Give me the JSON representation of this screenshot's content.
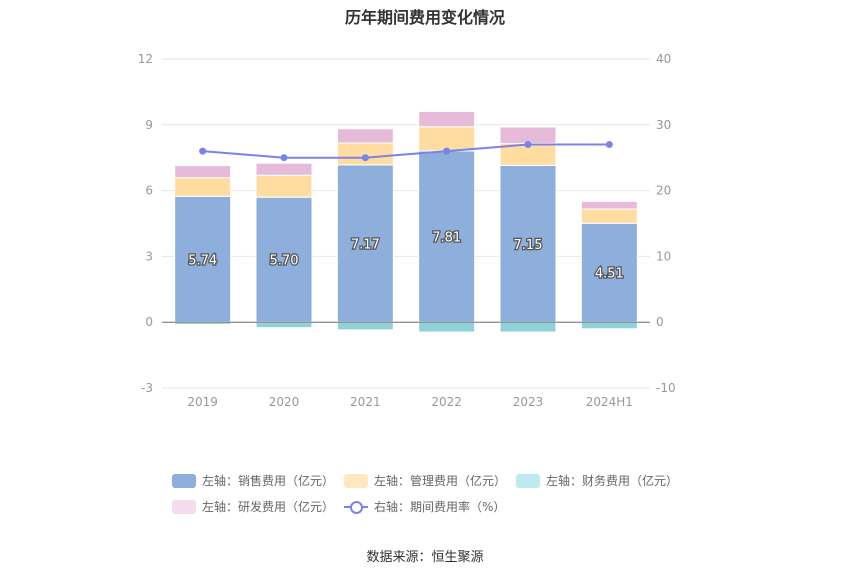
{
  "title": "历年期间费用变化情况",
  "source": "数据来源：恒生聚源",
  "colors": {
    "sales": "#8eaedb",
    "admin": "#ffdca0",
    "finance": "#8fd3d9",
    "rd": "#e6bbda",
    "rate": "#7b83e8"
  },
  "legend": [
    {
      "label": "左轴：销售费用（亿元）",
      "key": "sales",
      "kind": "bar"
    },
    {
      "label": "左轴：管理费用（亿元）",
      "key": "admin",
      "kind": "bar"
    },
    {
      "label": "左轴：财务费用（亿元）",
      "key": "finance",
      "kind": "bar"
    },
    {
      "label": "左轴：研发费用（亿元）",
      "key": "rd",
      "kind": "bar"
    },
    {
      "label": "右轴：期间费用率（%）",
      "key": "rate",
      "kind": "line"
    }
  ],
  "chart_data": {
    "type": "bar",
    "stacked": true,
    "categories": [
      "2019",
      "2020",
      "2021",
      "2022",
      "2023",
      "2024H1"
    ],
    "left_axis": {
      "ylim": [
        -3,
        12
      ],
      "ticks": [
        -3,
        0,
        3,
        6,
        9,
        12
      ]
    },
    "right_axis": {
      "ylim": [
        -10,
        40
      ],
      "ticks": [
        -10,
        0,
        10,
        20,
        30,
        40
      ]
    },
    "grid": true,
    "legend_position": "bottom",
    "series": [
      {
        "name": "左轴：销售费用（亿元）",
        "key": "sales",
        "axis": "left",
        "type": "bar",
        "values": [
          5.74,
          5.7,
          7.17,
          7.81,
          7.15,
          4.51
        ],
        "data_labels": [
          "5.74",
          "5.70",
          "7.17",
          "7.81",
          "7.15",
          "4.51"
        ]
      },
      {
        "name": "左轴：管理费用（亿元）",
        "key": "admin",
        "axis": "left",
        "type": "bar",
        "values": [
          0.85,
          1.0,
          1.0,
          1.1,
          1.0,
          0.65
        ]
      },
      {
        "name": "左轴：财务费用（亿元）",
        "key": "finance",
        "axis": "left",
        "type": "bar",
        "values": [
          -0.1,
          -0.25,
          -0.35,
          -0.45,
          -0.45,
          -0.3
        ]
      },
      {
        "name": "左轴：研发费用（亿元）",
        "key": "rd",
        "axis": "left",
        "type": "bar",
        "values": [
          0.55,
          0.55,
          0.65,
          0.7,
          0.75,
          0.35
        ]
      },
      {
        "name": "右轴：期间费用率（%）",
        "key": "rate",
        "axis": "right",
        "type": "line",
        "values": [
          26.0,
          25.0,
          25.0,
          26.0,
          27.0,
          27.0
        ]
      }
    ]
  }
}
